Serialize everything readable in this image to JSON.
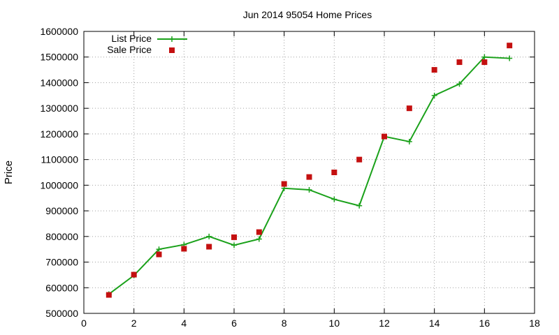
{
  "chart_data": {
    "type": "line",
    "title": "Jun 2014 95054 Home Prices",
    "xlabel": "",
    "ylabel": "Price",
    "xlim": [
      0,
      18
    ],
    "ylim": [
      500000,
      1600000
    ],
    "x_ticks": [
      0,
      2,
      4,
      6,
      8,
      10,
      12,
      14,
      16,
      18
    ],
    "y_ticks": [
      500000,
      600000,
      700000,
      800000,
      900000,
      1000000,
      1100000,
      1200000,
      1300000,
      1400000,
      1500000,
      1600000
    ],
    "grid": true,
    "legend_position": "top-left",
    "series": [
      {
        "name": "List Price",
        "style": "line-plus",
        "color": "#1aa11a",
        "x": [
          1,
          2,
          3,
          4,
          5,
          6,
          7,
          8,
          9,
          10,
          11,
          12,
          13,
          14,
          15,
          16,
          17
        ],
        "y": [
          575000,
          648000,
          750000,
          768000,
          800000,
          766000,
          790000,
          988000,
          982000,
          945000,
          920000,
          1190000,
          1170000,
          1350000,
          1395000,
          1500000,
          1495000
        ]
      },
      {
        "name": "Sale Price",
        "style": "square",
        "color": "#c41010",
        "x": [
          1,
          2,
          3,
          4,
          5,
          6,
          7,
          8,
          9,
          10,
          11,
          12,
          13,
          14,
          15,
          16,
          17
        ],
        "y": [
          572000,
          651000,
          730000,
          752000,
          760000,
          797000,
          817000,
          1005000,
          1032000,
          1050000,
          1100000,
          1190000,
          1300000,
          1450000,
          1480000,
          1480000,
          1545000
        ]
      }
    ]
  }
}
